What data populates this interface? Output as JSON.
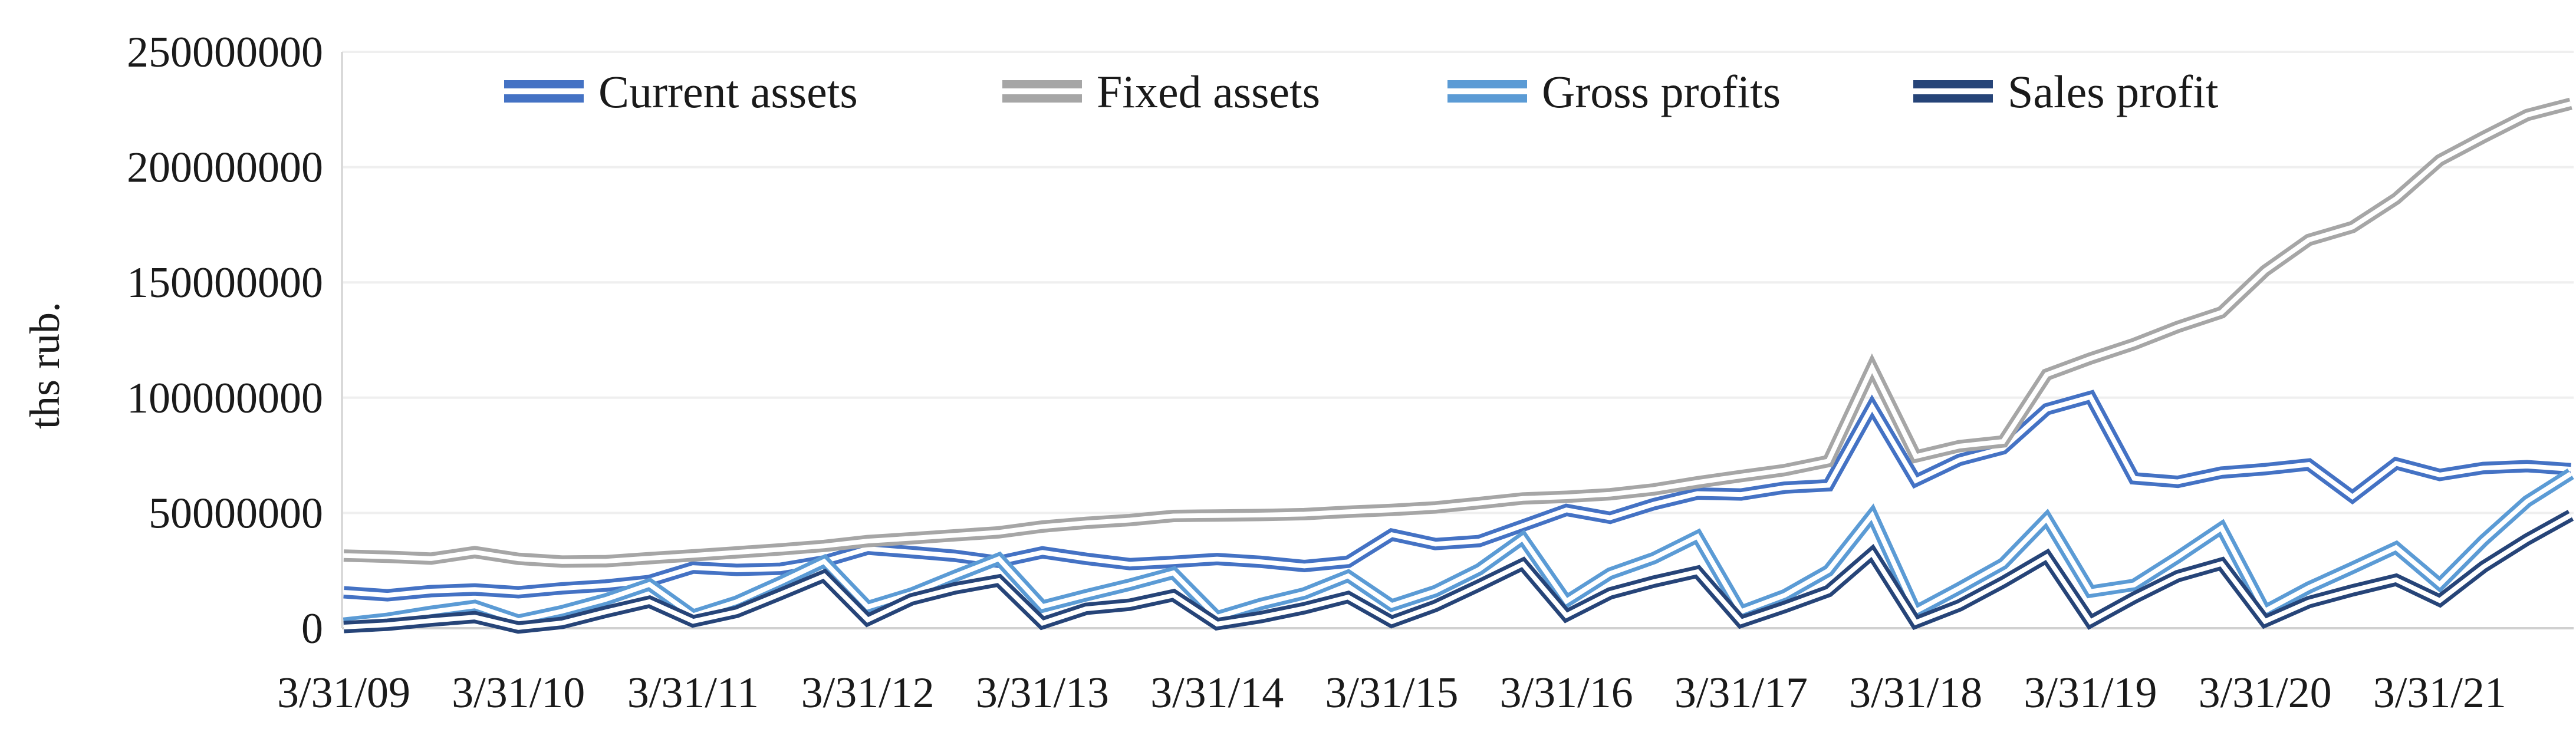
{
  "chart_data": {
    "type": "line",
    "title": "",
    "ylabel": "ths rub.",
    "xlabel": "",
    "grid": true,
    "legend_position": "top",
    "ylim": [
      0,
      250000000
    ],
    "ytick_values": [
      0,
      50000000,
      100000000,
      150000000,
      200000000,
      250000000
    ],
    "ytick_labels": [
      "0",
      "50000000",
      "100000000",
      "150000000",
      "200000000",
      "250000000"
    ],
    "x_tick_labels": [
      "3/31/09",
      "3/31/10",
      "3/31/11",
      "3/31/12",
      "3/31/13",
      "3/31/14",
      "3/31/15",
      "3/31/16",
      "3/31/17",
      "3/31/18",
      "3/31/19",
      "3/31/20",
      "3/31/21"
    ],
    "x_label_every": 4,
    "x_dates": [
      "3/31/09",
      "6/30/09",
      "9/30/09",
      "12/31/09",
      "3/31/10",
      "6/30/10",
      "9/30/10",
      "12/31/10",
      "3/31/11",
      "6/30/11",
      "9/30/11",
      "12/31/11",
      "3/31/12",
      "6/30/12",
      "9/30/12",
      "12/31/12",
      "3/31/13",
      "6/30/13",
      "9/30/13",
      "12/31/13",
      "3/31/14",
      "6/30/14",
      "9/30/14",
      "12/31/14",
      "3/31/15",
      "6/30/15",
      "9/30/15",
      "12/31/15",
      "3/31/16",
      "6/30/16",
      "9/30/16",
      "12/31/16",
      "3/31/17",
      "6/30/17",
      "9/30/17",
      "12/31/17",
      "3/31/18",
      "6/30/18",
      "9/30/18",
      "12/31/18",
      "3/31/19",
      "6/30/19",
      "9/30/19",
      "12/31/19",
      "3/31/20",
      "6/30/20",
      "9/30/20",
      "12/31/20",
      "3/31/21",
      "6/30/21",
      "9/30/21",
      "12/31/21"
    ],
    "series": [
      {
        "name": "Current assets",
        "color": "#4472C4",
        "values": [
          15600000,
          14300000,
          16100000,
          16800000,
          15600000,
          17300000,
          18500000,
          20500000,
          26300000,
          25300000,
          25800000,
          29000000,
          34500000,
          33000000,
          31400000,
          28800000,
          32900000,
          30100000,
          27800000,
          28800000,
          30000000,
          28800000,
          27000000,
          28800000,
          40600000,
          36500000,
          37800000,
          44500000,
          51300000,
          47900000,
          53800000,
          58400000,
          58000000,
          61000000,
          62000000,
          96000000,
          64000000,
          73000000,
          78000000,
          95000000,
          100300000,
          65000000,
          63500000,
          67500000,
          69000000,
          71000000,
          57000000,
          71500000,
          66500000,
          69500000,
          70300000,
          69000000
        ]
      },
      {
        "name": "Fixed assets",
        "color": "#A6A6A6",
        "values": [
          31500000,
          31000000,
          30200000,
          33000000,
          30100000,
          28900000,
          29100000,
          30400000,
          31600000,
          32900000,
          34200000,
          35700000,
          37800000,
          39000000,
          40300000,
          41600000,
          44100000,
          45700000,
          46900000,
          48700000,
          48900000,
          49100000,
          49500000,
          50500000,
          51300000,
          52400000,
          54300000,
          56300000,
          57000000,
          58100000,
          60200000,
          63300000,
          66000000,
          68600000,
          72500000,
          113000000,
          74500000,
          79000000,
          81000000,
          110000000,
          117000000,
          123300000,
          130700000,
          137000000,
          155000000,
          168400000,
          174000000,
          186300000,
          203000000,
          213000000,
          222600000,
          227500000
        ]
      },
      {
        "name": "Gross profits",
        "color": "#5B9BD5",
        "values": [
          2000000,
          4100000,
          7100000,
          9700000,
          3300000,
          7400000,
          12500000,
          19000000,
          5500000,
          11500000,
          20000000,
          29000000,
          9200000,
          15000000,
          22700000,
          30100000,
          9400000,
          14300000,
          18900000,
          24000000,
          4800000,
          10500000,
          15100000,
          22700000,
          9900000,
          16100000,
          25500000,
          39000000,
          11700000,
          23700000,
          30400000,
          39800000,
          7200000,
          14300000,
          25000000,
          49000000,
          7300000,
          17400000,
          28000000,
          47500000,
          15900000,
          18800000,
          30800000,
          43500000,
          7500000,
          17600000,
          26200000,
          35000000,
          19000000,
          38000000,
          55000000,
          67000000
        ]
      },
      {
        "name": "Sales profit",
        "color": "#264478",
        "values": [
          500000,
          1500000,
          3300000,
          4800000,
          300000,
          2300000,
          7100000,
          11500000,
          3000000,
          7100000,
          14800000,
          22700000,
          3600000,
          12500000,
          17300000,
          20700000,
          2200000,
          8400000,
          10200000,
          14300000,
          1800000,
          4800000,
          8700000,
          13500000,
          2800000,
          9700000,
          18600000,
          27800000,
          5500000,
          15100000,
          20200000,
          24500000,
          2800000,
          9200000,
          16100000,
          32500000,
          2500000,
          9900000,
          20000000,
          31000000,
          2800000,
          13200000,
          22600000,
          28000000,
          3000000,
          11300000,
          16400000,
          21000000,
          12000000,
          26600000,
          38500000,
          49000000
        ]
      }
    ],
    "line_style": "double",
    "colors": {
      "grid": "#EFEFEF",
      "axis": "#D9D9D9",
      "zero_line": "#D0D0D0",
      "text": "#1a1a1a"
    }
  }
}
